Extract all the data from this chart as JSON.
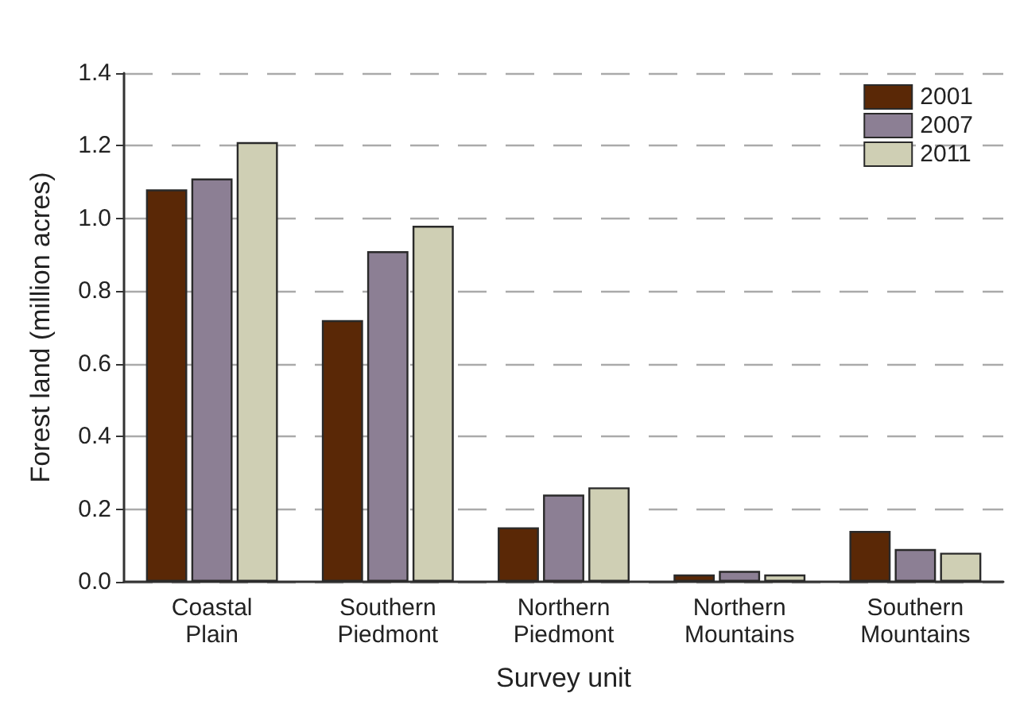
{
  "chart_data": {
    "type": "bar",
    "xlabel": "Survey unit",
    "ylabel": "Forest land (million acres)",
    "categories": [
      "Coastal Plain",
      "Southern Piedmont",
      "Northern Piedmont",
      "Northern Mountains",
      "Southern Mountains"
    ],
    "series": [
      {
        "name": "2001",
        "color": "#5a2806",
        "values": [
          1.08,
          0.72,
          0.15,
          0.02,
          0.14
        ]
      },
      {
        "name": "2007",
        "color": "#8c7f94",
        "values": [
          1.11,
          0.91,
          0.24,
          0.03,
          0.09
        ]
      },
      {
        "name": "2011",
        "color": "#cfcfb4",
        "values": [
          1.21,
          0.98,
          0.26,
          0.02,
          0.08
        ]
      }
    ],
    "ylim": [
      0,
      1.4
    ],
    "yticks": [
      {
        "value": 0,
        "label": "0.0"
      },
      0.2,
      0.4,
      0.6,
      0.8,
      {
        "value": 1,
        "label": "1.0"
      },
      1.2,
      1.4
    ],
    "grid": "y",
    "legend": "top right"
  }
}
